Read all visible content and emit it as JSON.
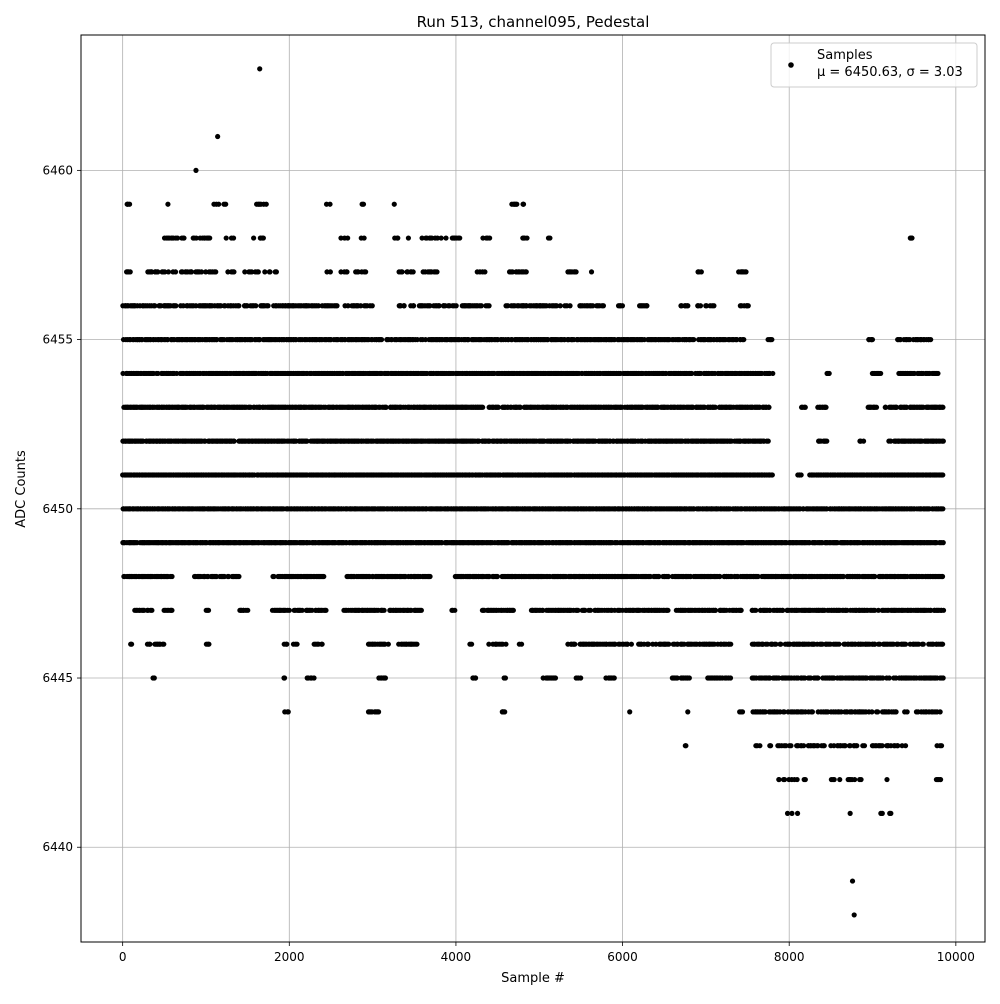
{
  "chart_data": {
    "type": "scatter",
    "title": "Run 513, channel095, Pedestal",
    "xlabel": "Sample #",
    "ylabel": "ADC Counts",
    "xlim": [
      -500,
      10350
    ],
    "ylim": [
      6437.2,
      6464.0
    ],
    "xticks": [
      0,
      2000,
      4000,
      6000,
      8000,
      10000
    ],
    "yticks": [
      6440,
      6445,
      6450,
      6455,
      6460
    ],
    "grid": true,
    "legend": {
      "position": "top-right",
      "entries": [
        {
          "label": "Samples",
          "sublabel": "μ = 6450.63, σ = 3.03"
        }
      ]
    },
    "marker_color": "#000000",
    "series": [
      {
        "name": "Samples",
        "bands": [
          {
            "y": 6441,
            "ranges": [
              [
                7800,
                8200
              ],
              [
                8700,
                8760
              ],
              [
                9100,
                9250
              ]
            ],
            "density": 0.15
          },
          {
            "y": 6442,
            "ranges": [
              [
                7800,
                8200
              ],
              [
                8500,
                8900
              ],
              [
                9150,
                9250
              ],
              [
                9750,
                9850
              ]
            ],
            "density": 0.35
          },
          {
            "y": 6443,
            "ranges": [
              [
                6750,
                6800
              ],
              [
                7600,
                7650
              ],
              [
                7750,
                8900
              ],
              [
                9000,
                9400
              ],
              [
                9750,
                9850
              ]
            ],
            "density": 0.45
          },
          {
            "y": 6444,
            "ranges": [
              [
                1950,
                2000
              ],
              [
                2950,
                3100
              ],
              [
                4550,
                4600
              ],
              [
                6080,
                6120
              ],
              [
                6780,
                6800
              ],
              [
                7400,
                7450
              ],
              [
                7550,
                9850
              ]
            ],
            "density": 0.6
          },
          {
            "y": 6445,
            "ranges": [
              [
                370,
                390
              ],
              [
                1930,
                1950
              ],
              [
                2200,
                2300
              ],
              [
                2780,
                2800
              ],
              [
                3080,
                3150
              ],
              [
                4200,
                4250
              ],
              [
                4580,
                4600
              ],
              [
                5050,
                5200
              ],
              [
                5450,
                5500
              ],
              [
                5800,
                5900
              ],
              [
                6600,
                6800
              ],
              [
                7000,
                7300
              ],
              [
                7550,
                9850
              ]
            ],
            "density": 0.75
          },
          {
            "y": 6446,
            "ranges": [
              [
                100,
                120
              ],
              [
                300,
                500
              ],
              [
                1000,
                1050
              ],
              [
                1900,
                2100
              ],
              [
                2300,
                2400
              ],
              [
                2950,
                3200
              ],
              [
                3300,
                3550
              ],
              [
                4150,
                4200
              ],
              [
                4400,
                4600
              ],
              [
                4750,
                4800
              ],
              [
                5350,
                7300
              ],
              [
                7550,
                9850
              ]
            ],
            "density": 0.7
          },
          {
            "y": 6447,
            "ranges": [
              [
                150,
                350
              ],
              [
                500,
                600
              ],
              [
                1000,
                1050
              ],
              [
                1400,
                1500
              ],
              [
                1800,
                2000
              ],
              [
                2050,
                2150
              ],
              [
                2200,
                2450
              ],
              [
                2650,
                3150
              ],
              [
                3200,
                3600
              ],
              [
                3950,
                4000
              ],
              [
                4300,
                4700
              ],
              [
                4900,
                5050
              ],
              [
                5050,
                7450
              ],
              [
                7550,
                9850
              ]
            ],
            "density": 0.8
          },
          {
            "y": 6448,
            "ranges": [
              [
                0,
                600
              ],
              [
                850,
                1400
              ],
              [
                1800,
                2450
              ],
              [
                2700,
                3700
              ],
              [
                4000,
                5000
              ],
              [
                5000,
                9850
              ]
            ],
            "density": 0.85
          },
          {
            "y": 6449,
            "ranges": [
              [
                0,
                9850
              ]
            ],
            "density": 0.95
          },
          {
            "y": 6450,
            "ranges": [
              [
                0,
                9850
              ]
            ],
            "density": 0.97
          },
          {
            "y": 6451,
            "ranges": [
              [
                0,
                7800
              ],
              [
                8100,
                8150
              ],
              [
                8250,
                9850
              ]
            ],
            "density": 0.97
          },
          {
            "y": 6452,
            "ranges": [
              [
                0,
                7750
              ],
              [
                8350,
                8450
              ],
              [
                8850,
                8900
              ],
              [
                9200,
                9850
              ]
            ],
            "density": 0.9
          },
          {
            "y": 6453,
            "ranges": [
              [
                0,
                4350
              ],
              [
                4400,
                7750
              ],
              [
                7750,
                7800
              ],
              [
                8150,
                8200
              ],
              [
                8350,
                8450
              ],
              [
                8950,
                9050
              ],
              [
                9150,
                9850
              ]
            ],
            "density": 0.9
          },
          {
            "y": 6454,
            "ranges": [
              [
                0,
                7800
              ],
              [
                8450,
                8480
              ],
              [
                9000,
                9100
              ],
              [
                9300,
                9800
              ]
            ],
            "density": 0.9
          },
          {
            "y": 6455,
            "ranges": [
              [
                0,
                7450
              ],
              [
                7750,
                7800
              ],
              [
                8950,
                9000
              ],
              [
                9300,
                9700
              ]
            ],
            "density": 0.85
          },
          {
            "y": 6456,
            "ranges": [
              [
                0,
                3000
              ],
              [
                3300,
                4400
              ],
              [
                4600,
                5800
              ],
              [
                5950,
                6000
              ],
              [
                6200,
                6300
              ],
              [
                6700,
                6800
              ],
              [
                6900,
                7100
              ],
              [
                7400,
                7550
              ]
            ],
            "density": 0.6
          },
          {
            "y": 6457,
            "ranges": [
              [
                50,
                100
              ],
              [
                300,
                1350
              ],
              [
                1450,
                1850
              ],
              [
                2450,
                2500
              ],
              [
                2600,
                2700
              ],
              [
                2800,
                2950
              ],
              [
                3300,
                3500
              ],
              [
                3600,
                3800
              ],
              [
                4250,
                4350
              ],
              [
                4650,
                4850
              ],
              [
                5350,
                5450
              ],
              [
                5600,
                5650
              ],
              [
                6900,
                6950
              ],
              [
                7400,
                7550
              ]
            ],
            "density": 0.5
          },
          {
            "y": 6458,
            "ranges": [
              [
                80,
                100
              ],
              [
                500,
                1050
              ],
              [
                1150,
                1350
              ],
              [
                1550,
                1700
              ],
              [
                2450,
                2500
              ],
              [
                2600,
                2700
              ],
              [
                2850,
                2900
              ],
              [
                3250,
                3450
              ],
              [
                3600,
                3900
              ],
              [
                3950,
                4050
              ],
              [
                4300,
                4400
              ],
              [
                4800,
                4900
              ],
              [
                5100,
                5150
              ],
              [
                9450,
                9500
              ]
            ],
            "density": 0.45
          },
          {
            "y": 6459,
            "ranges": [
              [
                50,
                80
              ],
              [
                550,
                570
              ],
              [
                850,
                900
              ],
              [
                1100,
                1250
              ],
              [
                1600,
                1750
              ],
              [
                2450,
                2500
              ],
              [
                2850,
                2900
              ],
              [
                3250,
                3300
              ],
              [
                4650,
                4750
              ],
              [
                4800,
                4820
              ]
            ],
            "density": 0.5
          }
        ],
        "outliers": [
          [
            1645,
            6463
          ],
          [
            1140,
            6461
          ],
          [
            880,
            6460
          ],
          [
            9470,
            6458
          ],
          [
            8480,
            6454
          ],
          [
            8985,
            6455
          ],
          [
            8760,
            6439
          ],
          [
            8780,
            6438
          ],
          [
            6760,
            6443
          ],
          [
            7600,
            6443
          ],
          [
            9220,
            6441
          ],
          [
            9100,
            6441
          ]
        ]
      }
    ]
  }
}
